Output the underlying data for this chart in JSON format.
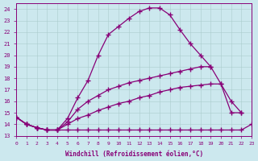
{
  "background_color": "#cce8ee",
  "grid_color": "#aacccc",
  "line_color": "#880077",
  "xlim": [
    0,
    23
  ],
  "ylim": [
    13,
    24.5
  ],
  "xticks": [
    0,
    1,
    2,
    3,
    4,
    5,
    6,
    7,
    8,
    9,
    10,
    11,
    12,
    13,
    14,
    15,
    16,
    17,
    18,
    19,
    20,
    21,
    22,
    23
  ],
  "yticks": [
    13,
    14,
    15,
    16,
    17,
    18,
    19,
    20,
    21,
    22,
    23,
    24
  ],
  "xlabel": "Windchill (Refroidissement éolien,°C)",
  "series": [
    {
      "x": [
        0,
        1,
        2,
        3,
        4,
        5,
        6,
        7,
        8,
        9,
        10,
        11,
        12,
        13,
        14,
        15,
        16,
        17,
        18,
        19
      ],
      "y": [
        14.6,
        14.0,
        13.7,
        13.5,
        13.5,
        14.5,
        16.3,
        17.8,
        20.0,
        21.8,
        22.5,
        23.2,
        23.8,
        24.1,
        24.1,
        23.5,
        22.2,
        21.0,
        20.0,
        19.0
      ]
    },
    {
      "x": [
        0,
        1,
        2,
        3,
        4,
        5,
        6,
        7,
        8,
        9,
        10,
        11,
        12,
        13,
        14,
        15,
        16,
        17,
        18,
        19,
        20,
        21,
        22
      ],
      "y": [
        14.6,
        14.0,
        13.7,
        13.5,
        13.5,
        14.2,
        15.3,
        16.0,
        16.5,
        17.0,
        17.3,
        17.6,
        17.8,
        18.0,
        18.2,
        18.4,
        18.6,
        18.8,
        19.0,
        19.0,
        17.5,
        15.0,
        15.0
      ]
    },
    {
      "x": [
        0,
        1,
        2,
        3,
        4,
        5,
        6,
        7,
        8,
        9,
        10,
        11,
        12,
        13,
        14,
        15,
        16,
        17,
        18,
        19,
        20,
        21,
        22
      ],
      "y": [
        14.6,
        14.0,
        13.7,
        13.5,
        13.5,
        14.0,
        14.5,
        14.8,
        15.2,
        15.5,
        15.8,
        16.0,
        16.3,
        16.5,
        16.8,
        17.0,
        17.2,
        17.3,
        17.4,
        17.5,
        17.5,
        16.0,
        15.0
      ]
    },
    {
      "x": [
        0,
        1,
        2,
        3,
        4,
        5,
        6,
        7,
        8,
        9,
        10,
        11,
        12,
        13,
        14,
        15,
        16,
        17,
        18,
        19,
        20,
        21,
        22,
        23
      ],
      "y": [
        14.6,
        14.0,
        13.7,
        13.5,
        13.5,
        13.5,
        13.5,
        13.5,
        13.5,
        13.5,
        13.5,
        13.5,
        13.5,
        13.5,
        13.5,
        13.5,
        13.5,
        13.5,
        13.5,
        13.5,
        13.5,
        13.5,
        13.5,
        14.0
      ]
    }
  ]
}
